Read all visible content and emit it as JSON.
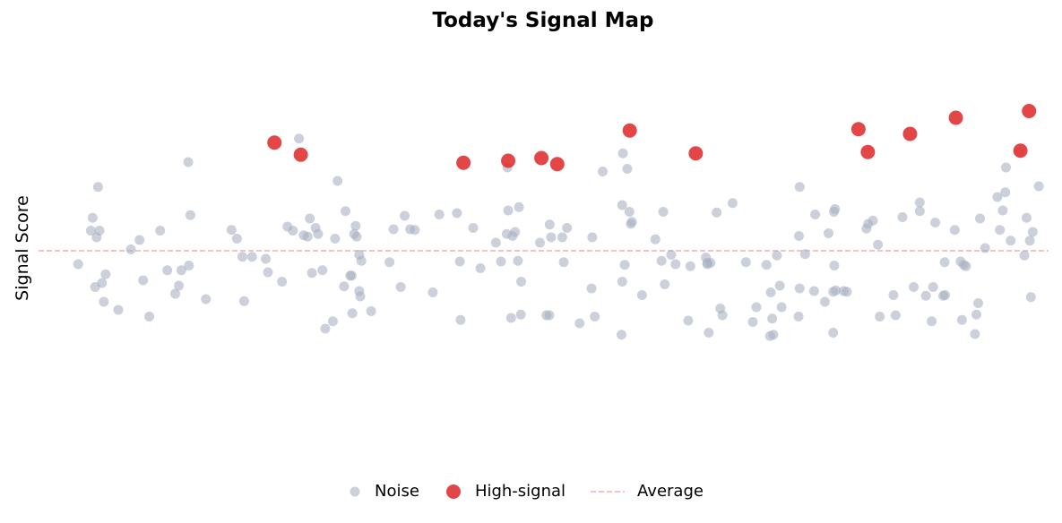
{
  "chart_data": {
    "type": "scatter",
    "title": "Today's Signal Map",
    "xlabel": "",
    "ylabel": "Signal Score",
    "average": 0.0,
    "xlim": [
      0,
      280
    ],
    "ylim": [
      -3.2,
      3.2
    ],
    "grid": false,
    "legend_position": "bottom-center",
    "colors": {
      "noise": "#a8b1c2",
      "signal": "#e03232",
      "average": "#e8a0a0"
    },
    "series": [
      {
        "name": "Noise",
        "points": [
          [
            11.0,
            -0.2
          ],
          [
            14.5,
            0.3
          ],
          [
            15.0,
            0.49
          ],
          [
            15.7,
            -0.54
          ],
          [
            16.1,
            0.2
          ],
          [
            16.5,
            0.95
          ],
          [
            16.9,
            0.3
          ],
          [
            17.6,
            -0.48
          ],
          [
            18.1,
            -0.76
          ],
          [
            18.6,
            -0.35
          ],
          [
            22.1,
            -0.88
          ],
          [
            25.6,
            0.02
          ],
          [
            28.0,
            0.16
          ],
          [
            29.0,
            -0.44
          ],
          [
            30.7,
            -0.98
          ],
          [
            33.7,
            0.3
          ],
          [
            35.7,
            -0.29
          ],
          [
            37.9,
            -0.64
          ],
          [
            38.9,
            -0.52
          ],
          [
            39.6,
            -0.29
          ],
          [
            41.5,
            1.32
          ],
          [
            41.7,
            -0.22
          ],
          [
            42.1,
            0.53
          ],
          [
            46.4,
            -0.72
          ],
          [
            53.5,
            0.31
          ],
          [
            55.0,
            0.18
          ],
          [
            57.0,
            -0.75
          ],
          [
            56.5,
            -0.09
          ],
          [
            59.2,
            -0.09
          ],
          [
            63.0,
            -0.12
          ],
          [
            63.6,
            -0.32
          ],
          [
            67.5,
            -0.46
          ],
          [
            69.0,
            0.36
          ],
          [
            70.5,
            0.3
          ],
          [
            72.2,
            1.67
          ],
          [
            73.5,
            0.23
          ],
          [
            74.6,
            0.21
          ],
          [
            75.2,
            0.48
          ],
          [
            75.8,
            -0.33
          ],
          [
            76.8,
            0.34
          ],
          [
            77.5,
            0.25
          ],
          [
            78.7,
            -0.29
          ],
          [
            79.5,
            -1.16
          ],
          [
            81.6,
            -1.05
          ],
          [
            82.2,
            0.18
          ],
          [
            82.9,
            1.04
          ],
          [
            84.7,
            -0.53
          ],
          [
            85.1,
            0.59
          ],
          [
            86.4,
            -0.37
          ],
          [
            86.8,
            -0.37
          ],
          [
            87.0,
            -0.93
          ],
          [
            87.5,
            0.25
          ],
          [
            87.9,
            0.37
          ],
          [
            88.2,
            0.21
          ],
          [
            88.9,
            -0.06
          ],
          [
            88.9,
            -0.6
          ],
          [
            89.2,
            -0.68
          ],
          [
            89.5,
            -0.15
          ],
          [
            92.2,
            -0.9
          ],
          [
            97.3,
            -0.17
          ],
          [
            98.4,
            0.32
          ],
          [
            100.4,
            -0.54
          ],
          [
            101.5,
            0.52
          ],
          [
            103.0,
            0.32
          ],
          [
            104.3,
            0.31
          ],
          [
            109.3,
            -0.62
          ],
          [
            111.1,
            0.54
          ],
          [
            116.0,
            0.56
          ],
          [
            116.8,
            -0.16
          ],
          [
            117.0,
            -1.03
          ],
          [
            120.5,
            0.34
          ],
          [
            122.5,
            -0.26
          ],
          [
            126.8,
            0.12
          ],
          [
            128.2,
            -0.16
          ],
          [
            129.8,
            0.25
          ],
          [
            130.0,
            1.24
          ],
          [
            130.2,
            0.6
          ],
          [
            131.0,
            -1.0
          ],
          [
            131.4,
            0.22
          ],
          [
            132.1,
            0.28
          ],
          [
            132.9,
            -0.15
          ],
          [
            133.2,
            0.65
          ],
          [
            133.7,
            -0.95
          ],
          [
            133.8,
            -0.46
          ],
          [
            139.0,
            0.12
          ],
          [
            140.8,
            -0.96
          ],
          [
            141.6,
            -0.96
          ],
          [
            141.7,
            0.39
          ],
          [
            142.1,
            0.2
          ],
          [
            145.2,
            0.2
          ],
          [
            145.6,
            -0.17
          ],
          [
            146.5,
            0.34
          ],
          [
            150.0,
            -1.08
          ],
          [
            153.3,
            -0.56
          ],
          [
            153.5,
            0.2
          ],
          [
            154.2,
            -0.98
          ],
          [
            156.4,
            1.18
          ],
          [
            161.6,
            -1.25
          ],
          [
            161.8,
            -0.46
          ],
          [
            161.8,
            0.68
          ],
          [
            162.0,
            1.45
          ],
          [
            162.5,
            -0.21
          ],
          [
            163.2,
            1.22
          ],
          [
            163.8,
            0.58
          ],
          [
            164.2,
            0.4
          ],
          [
            164.5,
            0.43
          ],
          [
            167.3,
            -0.66
          ],
          [
            171.0,
            0.17
          ],
          [
            172.7,
            -0.15
          ],
          [
            173.2,
            0.58
          ],
          [
            173.6,
            -0.5
          ],
          [
            175.4,
            -0.06
          ],
          [
            176.6,
            -0.2
          ],
          [
            180.1,
            -1.04
          ],
          [
            180.7,
            -0.23
          ],
          [
            185.0,
            -0.1
          ],
          [
            185.4,
            -0.18
          ],
          [
            185.4,
            -0.2
          ],
          [
            185.8,
            -1.22
          ],
          [
            186.3,
            -0.18
          ],
          [
            188.0,
            0.57
          ],
          [
            189.0,
            -0.86
          ],
          [
            189.6,
            -0.96
          ],
          [
            192.4,
            0.71
          ],
          [
            196.1,
            -0.17
          ],
          [
            198.0,
            -1.06
          ],
          [
            199.0,
            -0.84
          ],
          [
            201.8,
            -0.21
          ],
          [
            202.8,
            -1.27
          ],
          [
            203.0,
            -0.62
          ],
          [
            203.4,
            -1.01
          ],
          [
            203.7,
            -1.25
          ],
          [
            204.7,
            -0.07
          ],
          [
            205.5,
            -0.52
          ],
          [
            206.0,
            -0.84
          ],
          [
            210.7,
            -0.98
          ],
          [
            210.8,
            0.22
          ],
          [
            211.0,
            -0.56
          ],
          [
            211.0,
            0.95
          ],
          [
            212.5,
            -0.05
          ],
          [
            215.0,
            -0.6
          ],
          [
            215.3,
            0.54
          ],
          [
            218.0,
            -0.76
          ],
          [
            219.0,
            0.26
          ],
          [
            220.3,
            -0.61
          ],
          [
            220.3,
            -1.22
          ],
          [
            220.5,
            0.58
          ],
          [
            220.6,
            -0.22
          ],
          [
            220.8,
            0.62
          ],
          [
            221.0,
            -0.59
          ],
          [
            223.2,
            -0.6
          ],
          [
            224.1,
            -0.61
          ],
          [
            229.5,
            0.33
          ],
          [
            230.0,
            0.4
          ],
          [
            231.3,
            0.45
          ],
          [
            232.7,
            0.09
          ],
          [
            233.2,
            -0.98
          ],
          [
            237.0,
            -0.66
          ],
          [
            237.6,
            -0.96
          ],
          [
            239.5,
            0.5
          ],
          [
            242.6,
            -0.54
          ],
          [
            244.3,
            0.59
          ],
          [
            244.3,
            0.72
          ],
          [
            246.0,
            -0.67
          ],
          [
            247.6,
            -1.05
          ],
          [
            248.0,
            -0.54
          ],
          [
            248.6,
            0.42
          ],
          [
            250.8,
            -0.67
          ],
          [
            251.2,
            -0.17
          ],
          [
            251.3,
            -0.66
          ],
          [
            254.0,
            0.31
          ],
          [
            255.6,
            -0.16
          ],
          [
            256.0,
            -1.03
          ],
          [
            256.5,
            -0.21
          ],
          [
            257.1,
            -0.23
          ],
          [
            259.6,
            -1.24
          ],
          [
            260.0,
            -0.95
          ],
          [
            260.5,
            -0.78
          ],
          [
            261.0,
            0.48
          ],
          [
            262.4,
            0.04
          ],
          [
            265.8,
            0.8
          ],
          [
            266.5,
            0.31
          ],
          [
            267.3,
            0.6
          ],
          [
            268.0,
            0.87
          ],
          [
            268.2,
            1.24
          ],
          [
            269.5,
            0.15
          ],
          [
            272.0,
            1.47
          ],
          [
            273.3,
            -0.07
          ],
          [
            273.9,
            0.49
          ],
          [
            274.8,
            0.15
          ],
          [
            275.1,
            -0.69
          ],
          [
            275.6,
            0.28
          ],
          [
            277.3,
            0.96
          ]
        ]
      },
      {
        "name": "High-signal",
        "points": [
          [
            65.4,
            1.61
          ],
          [
            72.7,
            1.43
          ],
          [
            117.8,
            1.31
          ],
          [
            130.2,
            1.34
          ],
          [
            139.4,
            1.38
          ],
          [
            143.8,
            1.29
          ],
          [
            163.9,
            1.79
          ],
          [
            182.2,
            1.45
          ],
          [
            227.3,
            1.81
          ],
          [
            229.9,
            1.47
          ],
          [
            241.6,
            1.74
          ],
          [
            254.3,
            1.98
          ],
          [
            274.6,
            2.08
          ],
          [
            272.2,
            1.49
          ]
        ]
      }
    ]
  },
  "legend": {
    "noise_label": "Noise",
    "signal_label": "High-signal",
    "average_label": "Average"
  }
}
